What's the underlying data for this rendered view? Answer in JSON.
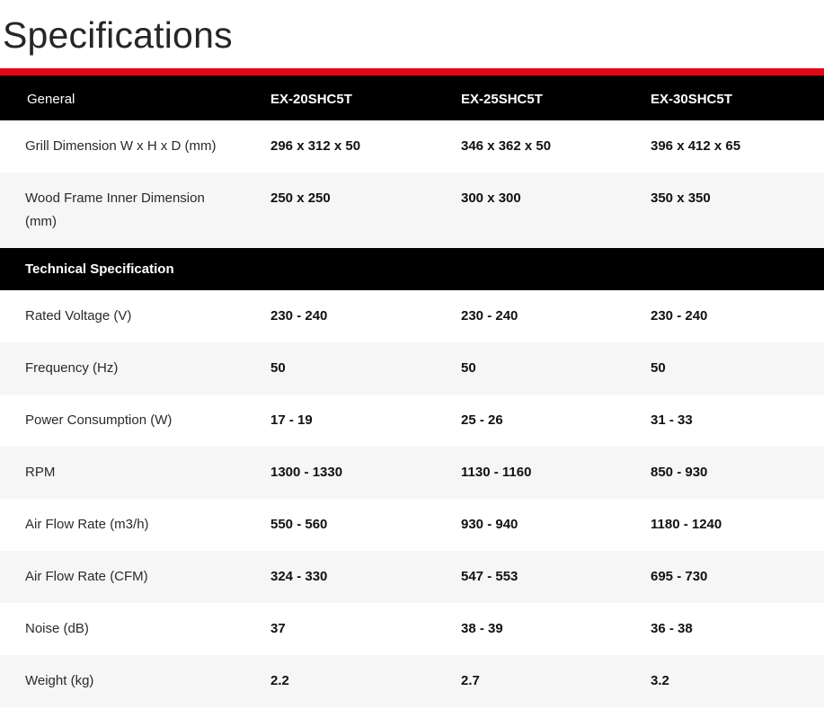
{
  "page_title": "Specifications",
  "colors": {
    "accent_red": "#e20613",
    "band_black": "#000000",
    "row_alt_gray": "#f6f6f6"
  },
  "table": {
    "header": {
      "corner": "General",
      "models": [
        "EX-20SHC5T",
        "EX-25SHC5T",
        "EX-30SHC5T"
      ]
    },
    "general_rows": [
      {
        "label": "Grill Dimension W x H x D (mm)",
        "values": [
          "296 x 312 x 50",
          "346 x 362 x 50",
          "396 x 412 x 65"
        ]
      },
      {
        "label": "Wood Frame Inner Dimension (mm)",
        "values": [
          "250 x 250",
          "300 x 300",
          "350 x 350"
        ]
      }
    ],
    "section_title": "Technical Specification",
    "technical_rows": [
      {
        "label": "Rated Voltage (V)",
        "values": [
          "230 - 240",
          "230 - 240",
          "230 - 240"
        ]
      },
      {
        "label": "Frequency (Hz)",
        "values": [
          "50",
          "50",
          "50"
        ]
      },
      {
        "label": "Power Consumption (W)",
        "values": [
          "17 - 19",
          "25 - 26",
          "31 - 33"
        ]
      },
      {
        "label": "RPM",
        "values": [
          "1300 - 1330",
          "1130 - 1160",
          "850 - 930"
        ]
      },
      {
        "label": "Air Flow Rate (m3/h)",
        "values": [
          "550 - 560",
          "930 - 940",
          "1180 - 1240"
        ]
      },
      {
        "label": "Air Flow Rate (CFM)",
        "values": [
          "324 - 330",
          "547 - 553",
          "695 - 730"
        ]
      },
      {
        "label": "Noise (dB)",
        "values": [
          "37",
          "38 - 39",
          "36 - 38"
        ]
      },
      {
        "label": "Weight (kg)",
        "values": [
          "2.2",
          "2.7",
          "3.2"
        ]
      }
    ]
  }
}
